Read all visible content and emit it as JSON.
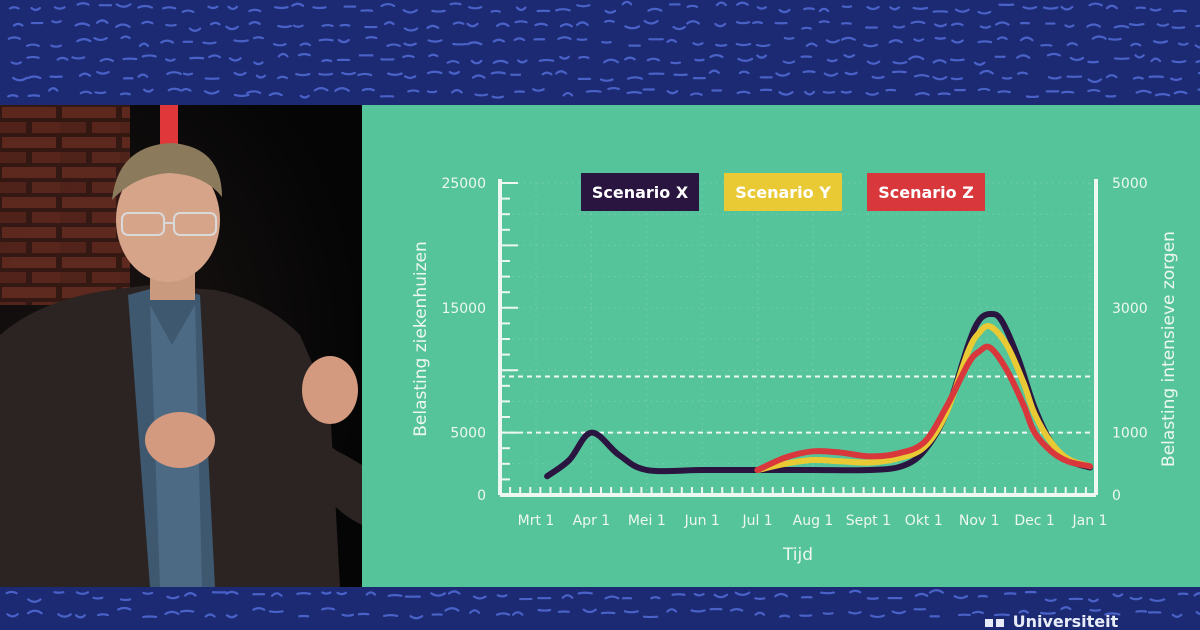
{
  "colors": {
    "background_navy": "#1b2a72",
    "slide_green": "#55c49a",
    "scenario_x": "#2a1540",
    "scenario_y": "#e9c934",
    "scenario_z": "#d8373c",
    "axis_white": "#eef7f2"
  },
  "logo": {
    "text": "Universiteit"
  },
  "chart_data": {
    "type": "line",
    "title": "",
    "xlabel": "Tijd",
    "ylabel": "Belasting ziekenhuizen",
    "y2label": "Belasting intensieve zorgen",
    "categories": [
      "Mrt 1",
      "Apr 1",
      "Mei 1",
      "Jun 1",
      "Jul 1",
      "Aug 1",
      "Sept 1",
      "Okt 1",
      "Nov 1",
      "Dec 1",
      "Jan 1"
    ],
    "yticks": [
      "25000",
      "15000",
      "5000",
      "0"
    ],
    "y2ticks": [
      "5000",
      "3000",
      "1000",
      "0"
    ],
    "ylim": [
      0,
      25000
    ],
    "y2lim": [
      0,
      5000
    ],
    "grid": true,
    "legend_position": "top",
    "reference_lines": [
      5000,
      9500
    ],
    "series": [
      {
        "name": "Scenario X",
        "color": "#2a1540",
        "x": [
          0.2,
          0.6,
          1.0,
          1.5,
          2.0,
          3.0,
          4.0,
          5.0,
          6.0,
          6.6,
          7.0,
          7.4,
          7.8,
          8.0,
          8.2,
          8.4,
          8.7,
          9.0,
          9.3,
          9.6,
          10.0
        ],
        "values": [
          1500,
          2800,
          5000,
          3200,
          2000,
          2000,
          2000,
          2000,
          2000,
          2300,
          3500,
          6500,
          12000,
          14000,
          14500,
          14000,
          11000,
          7000,
          4200,
          2800,
          2200
        ]
      },
      {
        "name": "Scenario Y",
        "color": "#e9c934",
        "x": [
          4.0,
          4.5,
          5.0,
          5.5,
          6.0,
          6.5,
          7.0,
          7.4,
          7.8,
          8.0,
          8.2,
          8.5,
          8.8,
          9.0,
          9.3,
          9.6,
          10.0
        ],
        "values": [
          2000,
          2500,
          2800,
          2700,
          2600,
          2900,
          3800,
          6500,
          11500,
          13000,
          13500,
          12000,
          9000,
          6500,
          4200,
          2900,
          2300
        ]
      },
      {
        "name": "Scenario Z",
        "color": "#d8373c",
        "x": [
          4.0,
          4.5,
          5.0,
          5.5,
          6.0,
          6.5,
          7.0,
          7.4,
          7.8,
          8.0,
          8.2,
          8.5,
          8.8,
          9.0,
          9.3,
          9.6,
          10.0
        ],
        "values": [
          2000,
          3000,
          3500,
          3400,
          3100,
          3300,
          4200,
          7000,
          10500,
          11500,
          11800,
          10000,
          7200,
          5000,
          3500,
          2700,
          2300
        ]
      }
    ]
  }
}
